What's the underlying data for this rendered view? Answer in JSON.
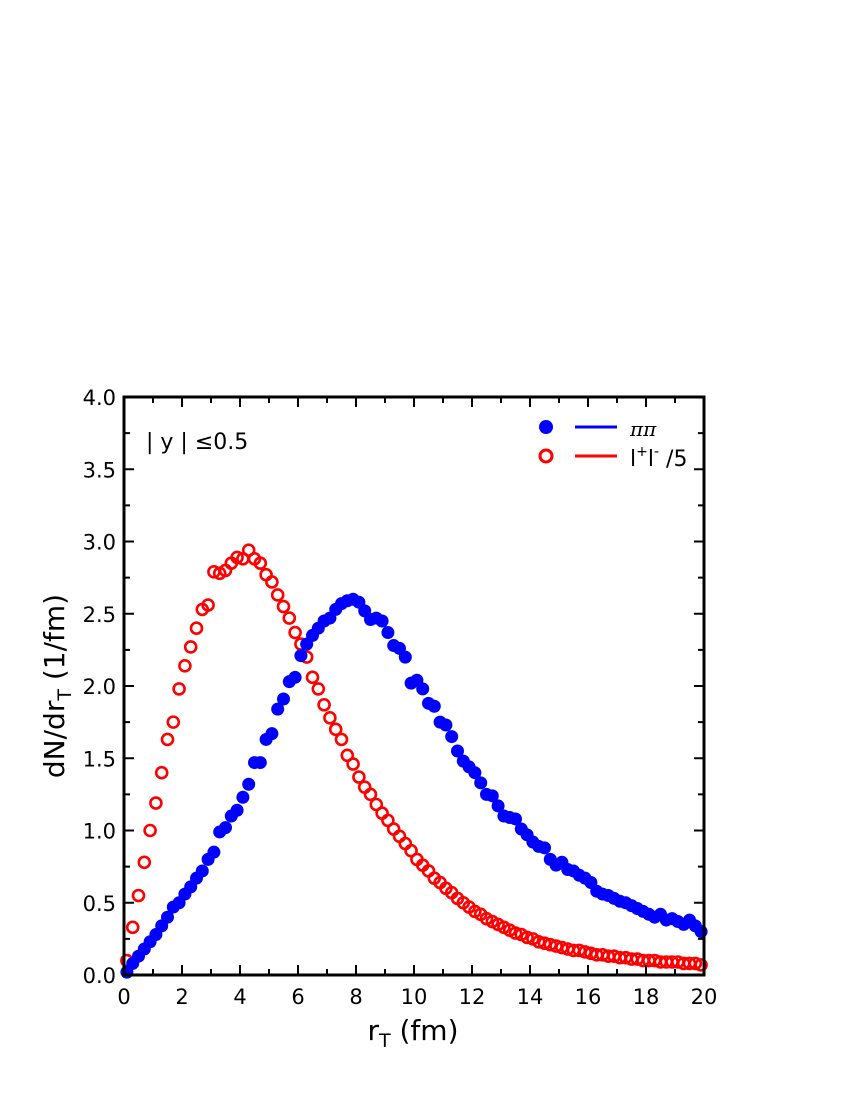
{
  "chart_data": {
    "type": "scatter",
    "title": "",
    "xlabel": "r",
    "xlabel_sub": "T",
    "xlabel_unit": " (fm)",
    "ylabel": "dN/dr",
    "ylabel_sub": "T",
    "ylabel_unit": " (1/fm)",
    "xlim": [
      0,
      20
    ],
    "ylim": [
      0,
      4.0
    ],
    "x_ticks": [
      "0",
      "2",
      "4",
      "6",
      "8",
      "10",
      "12",
      "14",
      "16",
      "18",
      "20"
    ],
    "y_ticks": [
      "0.0",
      "0.5",
      "1.0",
      "1.5",
      "2.0",
      "2.5",
      "3.0",
      "3.5",
      "4.0"
    ],
    "grid": false,
    "legend_position": "top-right",
    "annotation": "| y | ≤0.5",
    "x": [
      0.1,
      0.3,
      0.5,
      0.7,
      0.9,
      1.1,
      1.3,
      1.5,
      1.7,
      1.9,
      2.1,
      2.3,
      2.5,
      2.7,
      2.9,
      3.1,
      3.3,
      3.5,
      3.7,
      3.9,
      4.1,
      4.3,
      4.5,
      4.7,
      4.9,
      5.1,
      5.3,
      5.5,
      5.7,
      5.9,
      6.1,
      6.3,
      6.5,
      6.7,
      6.9,
      7.1,
      7.3,
      7.5,
      7.7,
      7.9,
      8.1,
      8.3,
      8.5,
      8.7,
      8.9,
      9.1,
      9.3,
      9.5,
      9.7,
      9.9,
      10.1,
      10.3,
      10.5,
      10.7,
      10.9,
      11.1,
      11.3,
      11.5,
      11.7,
      11.9,
      12.1,
      12.3,
      12.5,
      12.7,
      12.9,
      13.1,
      13.3,
      13.5,
      13.7,
      13.9,
      14.1,
      14.3,
      14.5,
      14.7,
      14.9,
      15.1,
      15.3,
      15.5,
      15.7,
      15.9,
      16.1,
      16.3,
      16.5,
      16.7,
      16.9,
      17.1,
      17.3,
      17.5,
      17.7,
      17.9,
      18.1,
      18.3,
      18.5,
      18.7,
      18.9,
      19.1,
      19.3,
      19.5,
      19.7,
      19.9
    ],
    "series": [
      {
        "name": "ππ",
        "legend_label": "ππ",
        "marker": "filled-circle",
        "color": "#0000ff",
        "values": [
          0.02,
          0.08,
          0.13,
          0.18,
          0.23,
          0.28,
          0.34,
          0.4,
          0.47,
          0.5,
          0.56,
          0.61,
          0.67,
          0.72,
          0.8,
          0.85,
          0.99,
          1.02,
          1.1,
          1.14,
          1.23,
          1.32,
          1.47,
          1.47,
          1.63,
          1.67,
          1.84,
          1.91,
          2.03,
          2.06,
          2.21,
          2.29,
          2.35,
          2.4,
          2.45,
          2.47,
          2.53,
          2.57,
          2.59,
          2.6,
          2.58,
          2.52,
          2.46,
          2.47,
          2.45,
          2.37,
          2.28,
          2.26,
          2.2,
          2.02,
          2.04,
          1.98,
          1.88,
          1.86,
          1.75,
          1.73,
          1.65,
          1.55,
          1.48,
          1.44,
          1.4,
          1.33,
          1.25,
          1.24,
          1.17,
          1.1,
          1.09,
          1.08,
          1.01,
          0.97,
          0.92,
          0.89,
          0.88,
          0.8,
          0.76,
          0.78,
          0.73,
          0.72,
          0.69,
          0.67,
          0.64,
          0.58,
          0.56,
          0.55,
          0.53,
          0.51,
          0.5,
          0.48,
          0.46,
          0.44,
          0.42,
          0.4,
          0.42,
          0.38,
          0.39,
          0.37,
          0.35,
          0.38,
          0.34,
          0.3
        ]
      },
      {
        "name": "l+l- /5",
        "legend_label": "l",
        "legend_sup1": "+",
        "legend_label2": "l",
        "legend_sup2": "-",
        "legend_suffix": " /5",
        "marker": "open-circle",
        "color": "#ff0000",
        "values": [
          0.1,
          0.33,
          0.55,
          0.78,
          1.0,
          1.19,
          1.4,
          1.63,
          1.75,
          1.98,
          2.14,
          2.27,
          2.4,
          2.53,
          2.56,
          2.79,
          2.78,
          2.8,
          2.85,
          2.89,
          2.88,
          2.94,
          2.88,
          2.85,
          2.77,
          2.72,
          2.63,
          2.55,
          2.47,
          2.37,
          2.29,
          2.2,
          2.06,
          1.98,
          1.87,
          1.78,
          1.7,
          1.63,
          1.52,
          1.46,
          1.37,
          1.3,
          1.25,
          1.18,
          1.12,
          1.07,
          1.01,
          0.96,
          0.91,
          0.86,
          0.8,
          0.76,
          0.72,
          0.67,
          0.64,
          0.6,
          0.57,
          0.53,
          0.5,
          0.47,
          0.44,
          0.42,
          0.39,
          0.37,
          0.35,
          0.33,
          0.31,
          0.29,
          0.28,
          0.26,
          0.25,
          0.23,
          0.22,
          0.21,
          0.2,
          0.19,
          0.18,
          0.17,
          0.17,
          0.16,
          0.15,
          0.14,
          0.14,
          0.13,
          0.13,
          0.12,
          0.12,
          0.11,
          0.11,
          0.1,
          0.1,
          0.1,
          0.09,
          0.09,
          0.09,
          0.09,
          0.08,
          0.08,
          0.08,
          0.07
        ]
      }
    ]
  }
}
